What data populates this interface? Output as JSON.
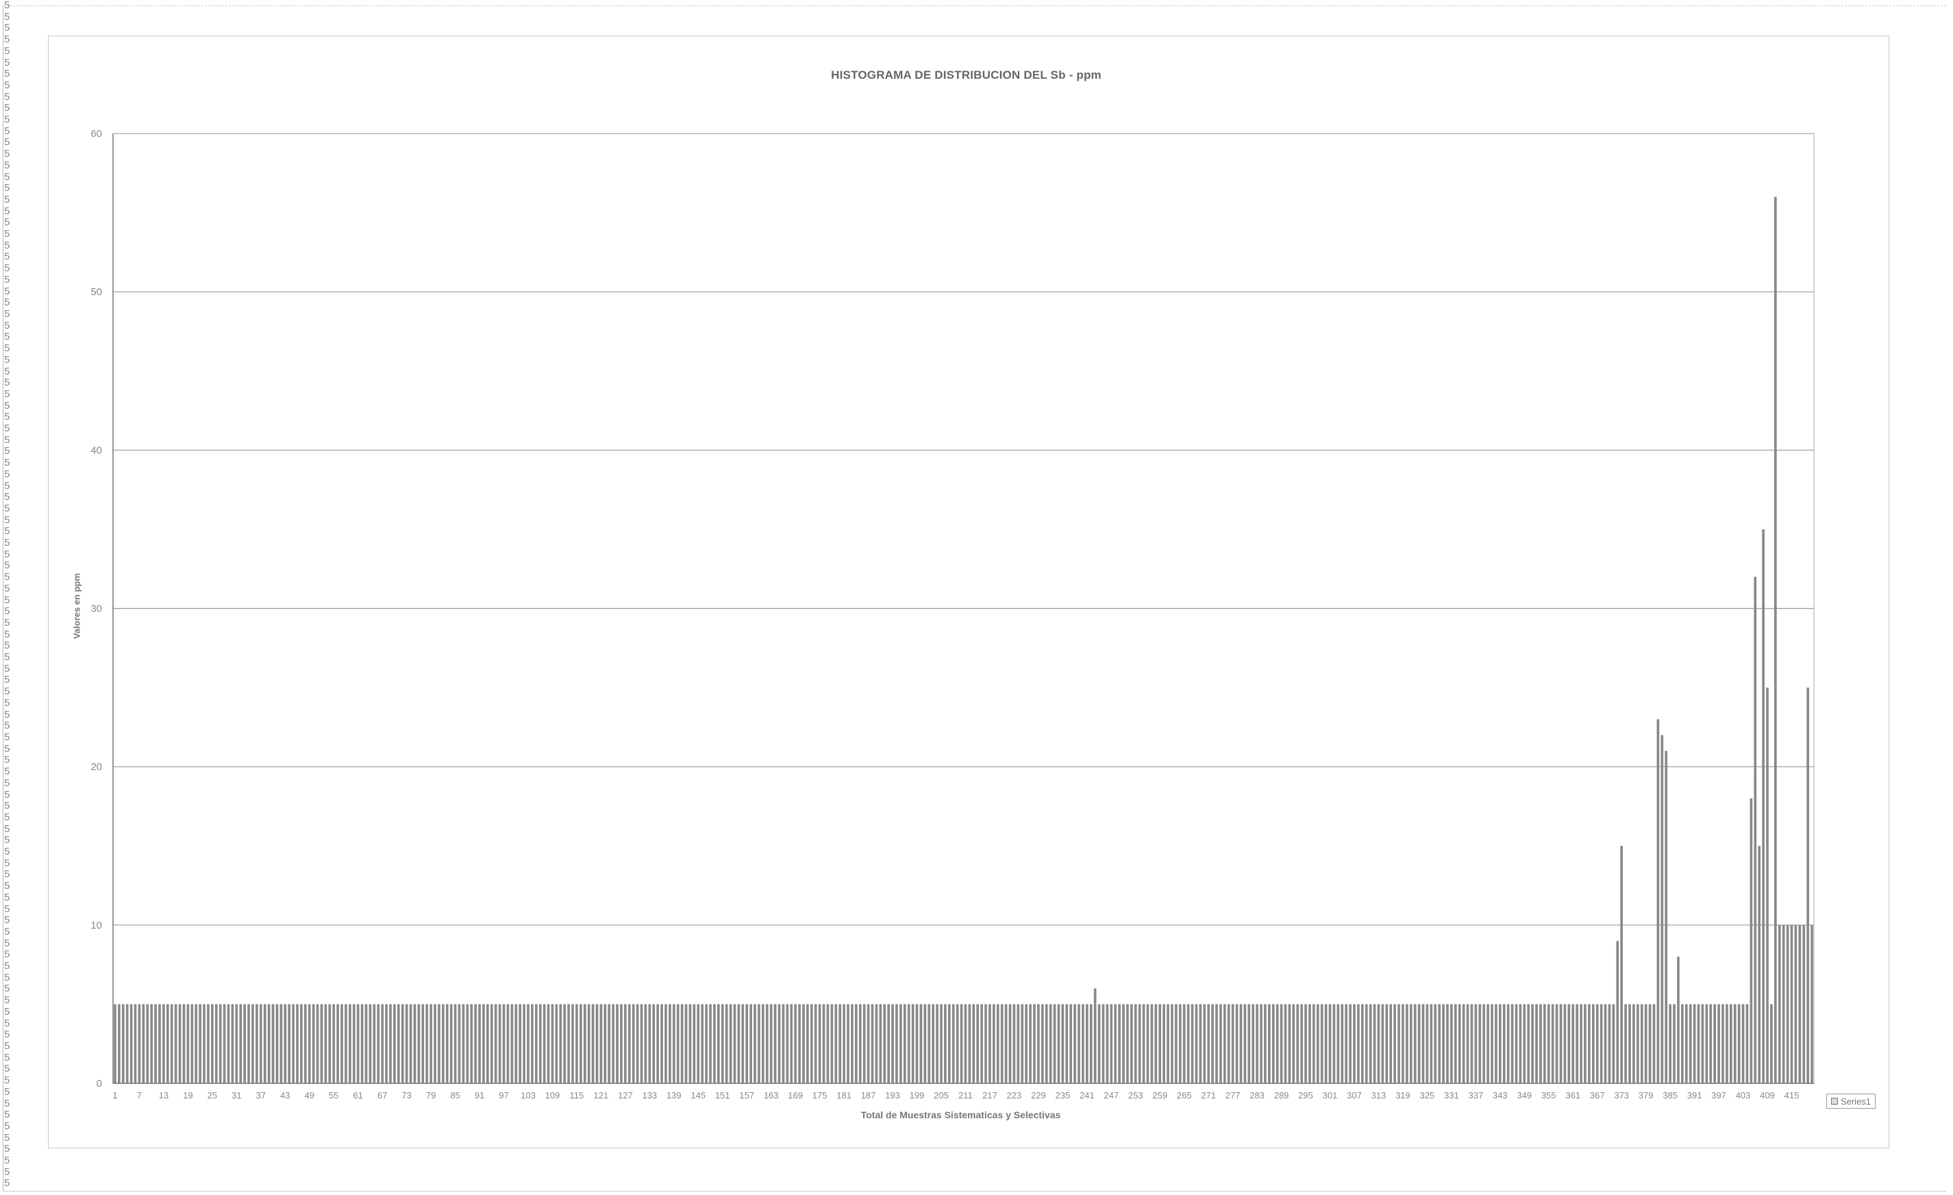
{
  "left_column_text": "5",
  "chart_data": {
    "type": "bar",
    "title": "HISTOGRAMA DE DISTRIBUCION DEL Sb - ppm",
    "xlabel": "Total de Muestras Sistematicas y Selectivas",
    "ylabel": "Valores en ppm",
    "ylim": [
      0,
      60
    ],
    "yticks": [
      0,
      10,
      20,
      30,
      40,
      50,
      60
    ],
    "grid": true,
    "legend_position": "bottom-right",
    "x": [
      1,
      420
    ],
    "xticks": [
      1,
      7,
      13,
      19,
      25,
      31,
      37,
      43,
      49,
      55,
      61,
      67,
      73,
      79,
      85,
      91,
      97,
      103,
      109,
      115,
      121,
      127,
      133,
      139,
      145,
      151,
      157,
      163,
      169,
      175,
      181,
      187,
      193,
      199,
      205,
      211,
      217,
      223,
      229,
      235,
      241,
      247,
      253,
      259,
      265,
      271,
      277,
      283,
      289,
      295,
      301,
      307,
      313,
      319,
      325,
      331,
      337,
      343,
      349,
      355,
      361,
      367,
      373,
      379,
      385,
      391,
      397,
      403,
      409,
      415
    ],
    "series": [
      {
        "name": "Series1",
        "color": "#888888",
        "default_value": 5,
        "exceptions": {
          "243": 6,
          "372": 9,
          "373": 15,
          "382": 23,
          "383": 22,
          "384": 21,
          "387": 8,
          "405": 18,
          "406": 32,
          "407": 15,
          "408": 35,
          "409": 25,
          "411": 56,
          "412": 10,
          "413": 10,
          "414": 10,
          "415": 10,
          "416": 10,
          "417": 10,
          "418": 10,
          "419": 25,
          "420": 10
        }
      }
    ]
  }
}
